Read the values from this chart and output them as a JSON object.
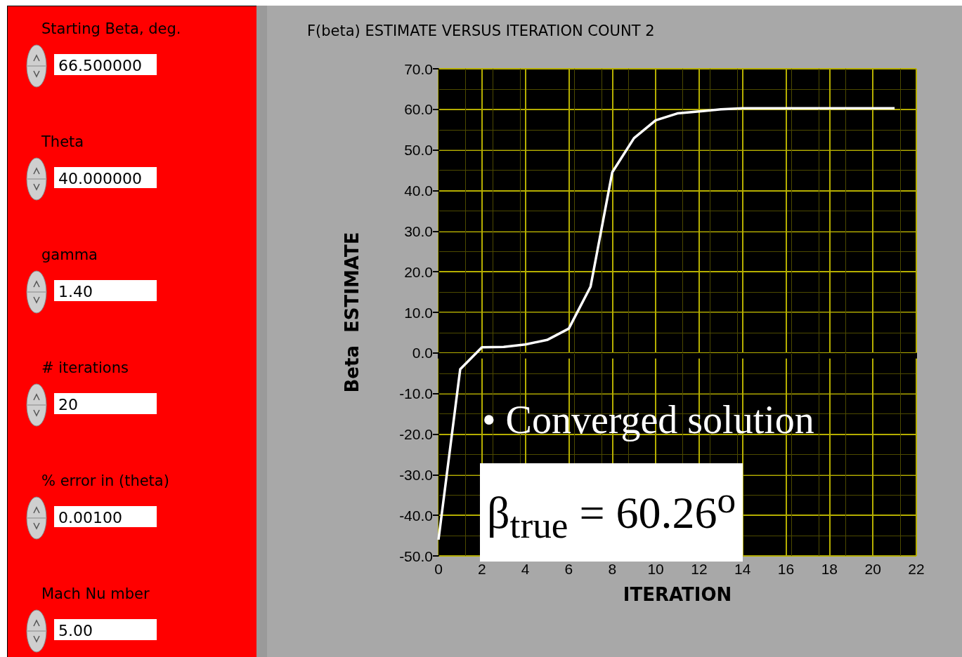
{
  "chart_data": [
    {
      "type": "other",
      "annotations": [
        "Starting Beta, deg.",
        "66.500000",
        "Theta",
        "40.000000",
        "gamma",
        "1.40",
        "# iterations",
        "20",
        "% error in (theta)",
        "0.00100",
        "Mach Nu mber",
        "5.00"
      ]
    },
    {
      "type": "line",
      "title": "F(beta) ESTIMATE VERSUS ITERATION COUNT 2",
      "xlabel": "ITERATION",
      "ylabel": "Beta  ESTIMATE",
      "x": [
        0,
        1,
        2,
        3,
        4,
        5,
        6,
        7,
        8,
        9,
        10,
        11,
        12,
        13,
        14,
        15,
        16,
        17,
        18,
        19,
        20,
        21
      ],
      "series": [
        {
          "color": "#ffffff",
          "values": [
            -46,
            -4,
            1.4,
            1.5,
            2.1,
            3.2,
            6.0,
            16.3,
            44.5,
            52.9,
            57.3,
            59.0,
            59.5,
            60.0,
            60.26,
            60.26,
            60.26,
            60.26,
            60.26,
            60.26,
            60.26,
            60.26
          ]
        }
      ],
      "xlim": [
        0,
        22
      ],
      "xticks": [
        0,
        2,
        4,
        6,
        8,
        10,
        12,
        14,
        16,
        18,
        20,
        22
      ],
      "ylim": [
        -50,
        70
      ],
      "yticks": [
        {
          "value": -50,
          "label": "-50.0"
        },
        {
          "value": -40,
          "label": "-40.0"
        },
        {
          "value": -30,
          "label": "-30.0"
        },
        {
          "value": -20,
          "label": "-20.0"
        },
        {
          "value": -10,
          "label": "-10.0"
        },
        {
          "value": 0,
          "label": "0.0"
        },
        {
          "value": 10,
          "label": "10.0"
        },
        {
          "value": 20,
          "label": "20.0"
        },
        {
          "value": 30,
          "label": "30.0"
        },
        {
          "value": 40,
          "label": "40.0"
        },
        {
          "value": 50,
          "label": "50.0"
        },
        {
          "value": 60,
          "label": "60.0"
        },
        {
          "value": 70,
          "label": "70.0"
        }
      ],
      "grid": true,
      "marker": "none",
      "annotations": [
        "• Converged solution",
        "β$_{true}$ = 60.26$^{o}$"
      ]
    }
  ]
}
